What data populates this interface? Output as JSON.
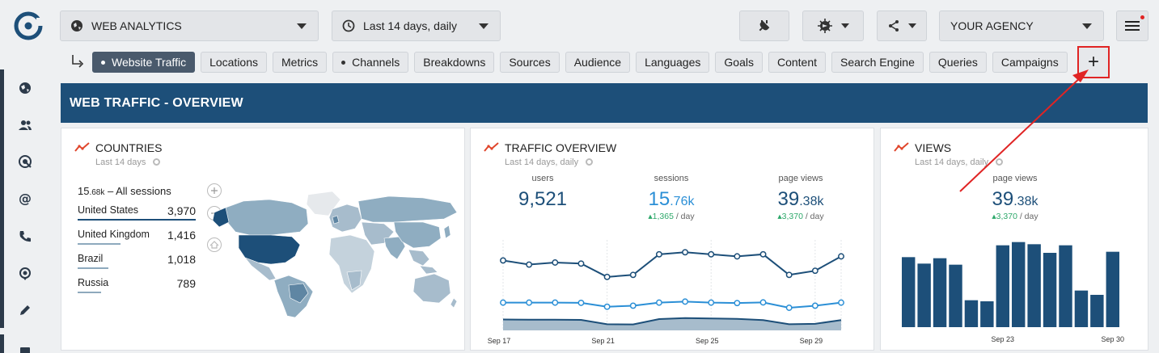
{
  "topbar": {
    "analytics_select": "WEB ANALYTICS",
    "date_select": "Last 14 days, daily",
    "agency_select": "YOUR AGENCY"
  },
  "tabs": [
    {
      "label": "Website Traffic",
      "dot": true,
      "active": true
    },
    {
      "label": "Locations",
      "dot": false
    },
    {
      "label": "Metrics",
      "dot": false
    },
    {
      "label": "Channels",
      "dot": true
    },
    {
      "label": "Breakdowns",
      "dot": false
    },
    {
      "label": "Sources",
      "dot": false
    },
    {
      "label": "Audience",
      "dot": false
    },
    {
      "label": "Languages",
      "dot": false
    },
    {
      "label": "Goals",
      "dot": false
    },
    {
      "label": "Content",
      "dot": false
    },
    {
      "label": "Search Engine",
      "dot": false
    },
    {
      "label": "Queries",
      "dot": false
    },
    {
      "label": "Campaigns",
      "dot": false
    }
  ],
  "add_tab_label": "+",
  "banner": "WEB TRAFFIC - OVERVIEW",
  "countries": {
    "title": "COUNTRIES",
    "subtitle": "Last 14 days",
    "total_main": "15",
    "total_small": ".68k",
    "total_suffix": " – All sessions",
    "rows": [
      {
        "name": "United States",
        "value": "3,970",
        "share": 1.0
      },
      {
        "name": "United Kingdom",
        "value": "1,416",
        "share": 0.36
      },
      {
        "name": "Brazil",
        "value": "1,018",
        "share": 0.26
      },
      {
        "name": "Russia",
        "value": "789",
        "share": 0.2
      }
    ]
  },
  "traffic": {
    "title": "TRAFFIC OVERVIEW",
    "subtitle": "Last 14 days, daily",
    "stats": [
      {
        "label": "users",
        "main": "9,521",
        "small": "",
        "delta": "",
        "per": ""
      },
      {
        "label": "sessions",
        "main": "15",
        "small": ".76k",
        "delta": "▴1,365",
        "per": " / day"
      },
      {
        "label": "page views",
        "main": "39",
        "small": ".38k",
        "delta": "▴3,370",
        "per": " / day"
      }
    ]
  },
  "views": {
    "title": "VIEWS",
    "subtitle": "Last 14 days, daily",
    "stat": {
      "label": "page views",
      "main": "39",
      "small": ".38k",
      "delta": "▴3,370",
      "per": " / day"
    }
  },
  "chart_data": [
    {
      "type": "line",
      "title": "TRAFFIC OVERVIEW",
      "x_tick_labels": [
        "Sep 17",
        "Sep 21",
        "Sep 25",
        "Sep 29"
      ],
      "x": [
        "Sep 17",
        "Sep 18",
        "Sep 19",
        "Sep 20",
        "Sep 21",
        "Sep 22",
        "Sep 23",
        "Sep 24",
        "Sep 25",
        "Sep 26",
        "Sep 27",
        "Sep 28",
        "Sep 29",
        "Sep 30"
      ],
      "series": [
        {
          "values": [
            3400,
            3200,
            3300,
            3250,
            2600,
            2700,
            3700,
            3800,
            3700,
            3600,
            3700,
            2700,
            2900,
            3600
          ]
        },
        {
          "values": [
            1350,
            1350,
            1350,
            1340,
            1150,
            1200,
            1350,
            1400,
            1350,
            1330,
            1360,
            1100,
            1200,
            1350
          ]
        },
        {
          "values": [
            530,
            520,
            520,
            510,
            300,
            290,
            550,
            600,
            580,
            560,
            500,
            300,
            320,
            500
          ]
        }
      ],
      "colors": [
        "#1d4f79",
        "#2b8fd6",
        "#1d4f79"
      ],
      "area_fill": "#a7bccc"
    },
    {
      "type": "bar",
      "title": "VIEWS",
      "x_tick_labels": [
        "Sep 23",
        "Sep 30"
      ],
      "categories": [
        "Sep 17",
        "Sep 18",
        "Sep 19",
        "Sep 20",
        "Sep 21",
        "Sep 22",
        "Sep 23",
        "Sep 24",
        "Sep 25",
        "Sep 26",
        "Sep 27",
        "Sep 28",
        "Sep 29",
        "Sep 30"
      ],
      "values": [
        3250,
        2950,
        3200,
        2900,
        1250,
        1200,
        3800,
        3950,
        3850,
        3450,
        3800,
        1700,
        1500,
        3500
      ],
      "color": "#1d4f79"
    }
  ]
}
